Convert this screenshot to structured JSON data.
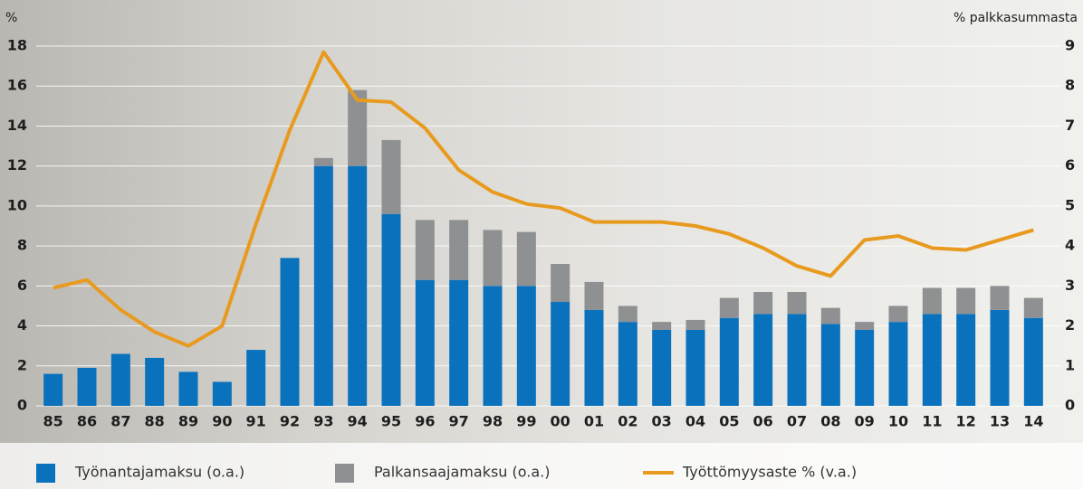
{
  "chart_data": {
    "type": "bar",
    "stacked": true,
    "ylabel": "%",
    "y2label": "% palkkasummasta",
    "categories": [
      "85",
      "86",
      "87",
      "88",
      "89",
      "90",
      "91",
      "92",
      "93",
      "94",
      "95",
      "96",
      "97",
      "98",
      "99",
      "00",
      "01",
      "02",
      "03",
      "04",
      "05",
      "06",
      "07",
      "08",
      "09",
      "10",
      "11",
      "12",
      "13",
      "14"
    ],
    "series": [
      {
        "name": "Työnantajamaksu (o.a.)",
        "type": "bar",
        "axis": "y2",
        "color": "#0a72bd",
        "values": [
          0.8,
          0.95,
          1.3,
          1.2,
          0.85,
          0.6,
          1.4,
          3.7,
          6.0,
          6.0,
          4.8,
          3.15,
          3.15,
          3.0,
          3.0,
          2.6,
          2.4,
          2.1,
          1.9,
          1.9,
          2.2,
          2.3,
          2.3,
          2.05,
          1.9,
          2.1,
          2.3,
          2.3,
          2.4,
          2.2
        ]
      },
      {
        "name": "Palkansaajamaksu (o.a.)",
        "type": "bar",
        "axis": "y2",
        "color": "#8e9092",
        "values": [
          0,
          0,
          0,
          0,
          0,
          0,
          0,
          0,
          0.2,
          1.9,
          1.85,
          1.5,
          1.5,
          1.4,
          1.35,
          0.95,
          0.7,
          0.4,
          0.2,
          0.25,
          0.5,
          0.55,
          0.55,
          0.4,
          0.2,
          0.4,
          0.65,
          0.65,
          0.6,
          0.5
        ]
      },
      {
        "name": "Työttömyysaste % (v.a.)",
        "type": "line",
        "axis": "y",
        "color": "#e89a1f",
        "values": [
          5.9,
          6.3,
          4.8,
          3.7,
          3.0,
          4.0,
          9.1,
          13.8,
          17.7,
          15.3,
          15.2,
          13.9,
          11.8,
          10.7,
          10.1,
          9.9,
          9.2,
          9.2,
          9.2,
          9.0,
          8.6,
          7.9,
          7.0,
          6.5,
          8.3,
          8.5,
          7.9,
          7.8,
          8.3,
          8.8
        ]
      }
    ],
    "ylim": [
      0,
      18
    ],
    "yticks": [
      0,
      2,
      4,
      6,
      8,
      10,
      12,
      14,
      16,
      18
    ],
    "y2lim": [
      0,
      9
    ],
    "y2ticks": [
      0,
      1,
      2,
      3,
      4,
      5,
      6,
      7,
      8,
      9
    ],
    "grid": true
  }
}
